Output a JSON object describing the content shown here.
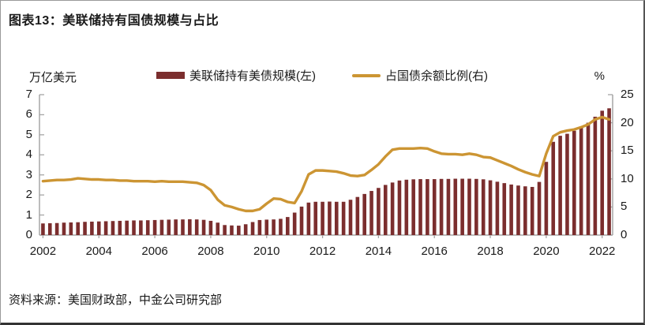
{
  "figure": {
    "title": "图表13：美联储持有国债规模与占比",
    "source": "资料来源：美国财政部，中金公司研究部"
  },
  "chart_data": {
    "type": "bar+line combo, quarterly series",
    "title": "美联储持有国债规模与占比",
    "x_tick_labels": [
      "2002",
      "2004",
      "2006",
      "2008",
      "2010",
      "2012",
      "2014",
      "2016",
      "2018",
      "2020",
      "2022"
    ],
    "x_range": "2002Q1 - 2022Q2 (82 quarters)",
    "left_axis": {
      "unit_label": "万亿美元",
      "min": 0,
      "max": 7,
      "ticks": [
        0,
        1,
        2,
        3,
        4,
        5,
        6,
        7
      ]
    },
    "right_axis": {
      "unit_label": "%",
      "min": 0,
      "max": 25,
      "ticks": [
        0,
        5,
        10,
        15,
        20,
        25
      ]
    },
    "grid": "off",
    "legend_position": "top-center",
    "series": [
      {
        "name": "美联储持有美债规模(左)",
        "type": "bar",
        "axis": "left",
        "color": "#7B2E2E",
        "values": [
          0.58,
          0.59,
          0.6,
          0.62,
          0.63,
          0.64,
          0.66,
          0.67,
          0.68,
          0.69,
          0.7,
          0.71,
          0.72,
          0.73,
          0.73,
          0.74,
          0.75,
          0.76,
          0.77,
          0.78,
          0.78,
          0.79,
          0.78,
          0.76,
          0.71,
          0.62,
          0.5,
          0.48,
          0.47,
          0.54,
          0.65,
          0.75,
          0.77,
          0.78,
          0.81,
          0.9,
          1.12,
          1.42,
          1.62,
          1.66,
          1.66,
          1.67,
          1.66,
          1.66,
          1.76,
          1.9,
          2.05,
          2.2,
          2.35,
          2.5,
          2.62,
          2.72,
          2.76,
          2.78,
          2.79,
          2.79,
          2.79,
          2.8,
          2.8,
          2.81,
          2.81,
          2.81,
          2.8,
          2.78,
          2.73,
          2.66,
          2.59,
          2.52,
          2.47,
          2.43,
          2.4,
          2.65,
          3.65,
          4.65,
          4.95,
          5.05,
          5.2,
          5.35,
          5.6,
          5.9,
          6.2,
          6.32
        ]
      },
      {
        "name": "占国债余额比例(右)",
        "type": "line",
        "axis": "right",
        "color": "#CC9533",
        "values": [
          9.6,
          9.7,
          9.8,
          9.8,
          9.9,
          10.1,
          10.0,
          9.9,
          9.9,
          9.8,
          9.8,
          9.7,
          9.7,
          9.6,
          9.6,
          9.6,
          9.5,
          9.6,
          9.5,
          9.5,
          9.5,
          9.4,
          9.3,
          8.9,
          8.0,
          6.3,
          5.3,
          5.0,
          4.6,
          4.3,
          4.3,
          4.6,
          5.6,
          6.5,
          6.4,
          5.9,
          5.7,
          7.8,
          10.8,
          11.5,
          11.5,
          11.4,
          11.3,
          11.0,
          10.6,
          10.5,
          10.7,
          11.6,
          12.6,
          14.0,
          15.2,
          15.4,
          15.4,
          15.4,
          15.5,
          15.4,
          14.9,
          14.5,
          14.4,
          14.4,
          14.3,
          14.5,
          14.3,
          13.9,
          13.8,
          13.3,
          12.8,
          12.3,
          11.7,
          11.2,
          10.8,
          10.5,
          14.5,
          17.6,
          18.3,
          18.6,
          18.8,
          19.2,
          19.7,
          20.6,
          21.0,
          20.6
        ]
      }
    ]
  },
  "colors": {
    "bar": "#7B2E2E",
    "line": "#CC9533",
    "axis": "#a6a6a6",
    "text": "#1a1a1a"
  }
}
